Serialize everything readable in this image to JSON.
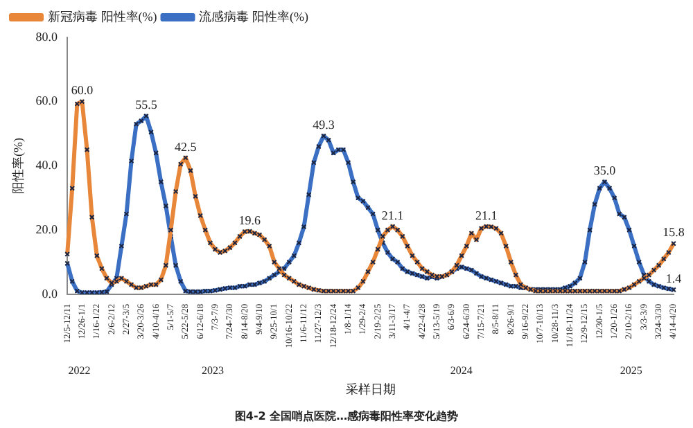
{
  "chart_data": {
    "type": "line",
    "categories": [
      "12/5-12/11",
      null,
      null,
      "12/26-1/1",
      null,
      null,
      "1/16-1/22",
      null,
      null,
      "2/6-2/12",
      null,
      null,
      "2/27-3/5",
      null,
      null,
      "3/20-3/26",
      null,
      null,
      "4/10-4/16",
      null,
      null,
      "5/1-5/7",
      null,
      null,
      "5/22-5/28",
      null,
      null,
      "6/12-6/18",
      null,
      null,
      "7/3-7/9",
      null,
      null,
      "7/24-7/30",
      null,
      null,
      "8/14-8/20",
      null,
      null,
      "9/4-9/10",
      null,
      null,
      "9/25-10/1",
      null,
      null,
      "10/16-10/22",
      null,
      null,
      "11/6-11/12",
      null,
      null,
      "11/27-12/3",
      null,
      null,
      "12/18-12/24",
      null,
      null,
      "1/8-1/14",
      null,
      null,
      "1/29-2/4",
      null,
      null,
      "2/19-2/25",
      null,
      null,
      "3/11-3/17",
      null,
      null,
      "4/1-4/7",
      null,
      null,
      "4/22-4/28",
      null,
      null,
      "5/13-5/19",
      null,
      null,
      "6/3-6/9",
      null,
      null,
      "6/24-6/30",
      null,
      null,
      "7/15-7/21",
      null,
      null,
      "8/5-8/11",
      null,
      null,
      "8/26-9/1",
      null,
      null,
      "9/16-9/22",
      null,
      null,
      "10/7-10/13",
      null,
      null,
      "10/28-11/3",
      null,
      null,
      "11/18-11/24",
      null,
      null,
      "12/9-12/15",
      null,
      null,
      "12/30-1/5",
      null,
      null,
      "1/20-1/26",
      null,
      null,
      "2/10-2/16",
      null,
      null,
      "3/3-3/9",
      null,
      null,
      "3/24-3/30",
      null,
      null,
      "4/14-4/20"
    ],
    "series": [
      {
        "name": "新冠病毒 阳性率(%)",
        "color": "#e8873a",
        "values": [
          12.5,
          33,
          59.3,
          60.0,
          45,
          24,
          12,
          8,
          5,
          3.5,
          4,
          5,
          4,
          3,
          2,
          2,
          2.5,
          3,
          3,
          4.5,
          9,
          20,
          32,
          40.5,
          42.5,
          38.5,
          30.5,
          24.5,
          20,
          16,
          14,
          13,
          13.5,
          14.5,
          16,
          18,
          19.5,
          19.6,
          19,
          18.5,
          17,
          15,
          10,
          8,
          6,
          5,
          4,
          3,
          2.5,
          2,
          1.5,
          1.2,
          1,
          1,
          1,
          1,
          1,
          1,
          1,
          2,
          4,
          7,
          10,
          14,
          18,
          20,
          21.1,
          20,
          18,
          15,
          12,
          10,
          8,
          7,
          6,
          5.5,
          5.5,
          6,
          7,
          9,
          12,
          15,
          19,
          17,
          20.5,
          21.1,
          21,
          20.5,
          19,
          15,
          10,
          6,
          3,
          2,
          1.5,
          1,
          1,
          1,
          1,
          1,
          1,
          1,
          1,
          1,
          1,
          1,
          1,
          1,
          1,
          1,
          1,
          1,
          1,
          1.5,
          2,
          3,
          4,
          5,
          6,
          7.5,
          9,
          11,
          13,
          15.8
        ],
        "value_labels": [
          null,
          null,
          null,
          "60.0",
          null,
          null,
          null,
          null,
          null,
          null,
          null,
          null,
          null,
          null,
          null,
          null,
          null,
          null,
          null,
          null,
          null,
          null,
          null,
          null,
          "42.5",
          null,
          null,
          null,
          null,
          null,
          null,
          null,
          null,
          null,
          null,
          null,
          null,
          "19.6",
          null,
          null,
          null,
          null,
          null,
          null,
          null,
          null,
          null,
          null,
          null,
          null,
          null,
          null,
          null,
          null,
          null,
          null,
          null,
          null,
          null,
          null,
          null,
          null,
          null,
          null,
          null,
          null,
          "21.1",
          null,
          null,
          null,
          null,
          null,
          null,
          null,
          null,
          null,
          null,
          null,
          null,
          null,
          null,
          null,
          null,
          null,
          null,
          "21.1",
          null,
          null,
          null,
          null,
          null,
          null,
          null,
          null,
          null,
          null,
          null,
          null,
          null,
          null,
          null,
          null,
          null,
          null,
          null,
          null,
          null,
          null,
          null,
          null,
          null,
          null,
          null,
          null,
          null,
          null,
          null,
          null,
          null,
          null,
          null,
          null,
          null,
          "15.8"
        ]
      },
      {
        "name": "流感病毒 阳性率(%)",
        "color": "#3a6fc4",
        "values": [
          9.6,
          4,
          1,
          0.5,
          0.5,
          0.5,
          0.5,
          0.6,
          0.8,
          3,
          5,
          15,
          25,
          41.5,
          53,
          54,
          55.5,
          50.5,
          44,
          35,
          27.5,
          18,
          9,
          4,
          1,
          0.8,
          0.8,
          0.8,
          1,
          1,
          1.2,
          1.5,
          1.8,
          2,
          2,
          2.5,
          2.5,
          3,
          3,
          3.5,
          4,
          5,
          6,
          7,
          8,
          10,
          12,
          16,
          21,
          31,
          41,
          46,
          49.3,
          48,
          44,
          45,
          45,
          41,
          35,
          30,
          29,
          27,
          25,
          20,
          16,
          13,
          11,
          10,
          8,
          7,
          6.5,
          6,
          5.5,
          5,
          5.5,
          5,
          5.5,
          6,
          7,
          8,
          8.5,
          8,
          7.5,
          6.5,
          5.5,
          5,
          4.5,
          4,
          3.5,
          3,
          2.5,
          2.5,
          2,
          2,
          1.5,
          1.5,
          1.5,
          1.5,
          1.5,
          1.5,
          1.5,
          2,
          2.5,
          3.5,
          5,
          10,
          20,
          28,
          33,
          35.0,
          33,
          30,
          25,
          24,
          20,
          15,
          10,
          6,
          4,
          3,
          2.5,
          2,
          1.7,
          1.4
        ],
        "value_labels": [
          null,
          null,
          null,
          null,
          null,
          null,
          null,
          null,
          null,
          null,
          null,
          null,
          null,
          null,
          null,
          null,
          "55.5",
          null,
          null,
          null,
          null,
          null,
          null,
          null,
          null,
          null,
          null,
          null,
          null,
          null,
          null,
          null,
          null,
          null,
          null,
          null,
          null,
          null,
          null,
          null,
          null,
          null,
          null,
          null,
          null,
          null,
          null,
          null,
          null,
          null,
          null,
          null,
          "49.3",
          null,
          null,
          null,
          null,
          null,
          null,
          null,
          null,
          null,
          null,
          null,
          null,
          null,
          null,
          null,
          null,
          null,
          null,
          null,
          null,
          null,
          null,
          null,
          null,
          null,
          null,
          null,
          null,
          null,
          null,
          null,
          null,
          null,
          null,
          null,
          null,
          null,
          null,
          null,
          null,
          null,
          null,
          null,
          null,
          null,
          null,
          null,
          null,
          null,
          null,
          null,
          null,
          null,
          null,
          null,
          null,
          "35.0",
          null,
          null,
          null,
          null,
          null,
          null,
          null,
          null,
          null,
          null,
          null,
          null,
          null,
          "1.4"
        ]
      }
    ],
    "ylabel": "阳性率(%)",
    "xlabel": "采样日期",
    "ylim": [
      0,
      80
    ],
    "yticks": [
      {
        "value": 0,
        "label": "0.0"
      },
      {
        "value": 20,
        "label": "20.0"
      },
      {
        "value": 40,
        "label": "40.0"
      },
      {
        "value": 60,
        "label": "60.0"
      },
      {
        "value": 80,
        "label": "80.0"
      }
    ],
    "annotations": [
      "2022",
      "2023",
      "2024",
      "2025",
      "图4-2 全国哨点医院…感病毒阳性率变化趋势"
    ],
    "legend": "top left",
    "grid": false,
    "marker": "cross",
    "line_style": "solid"
  }
}
